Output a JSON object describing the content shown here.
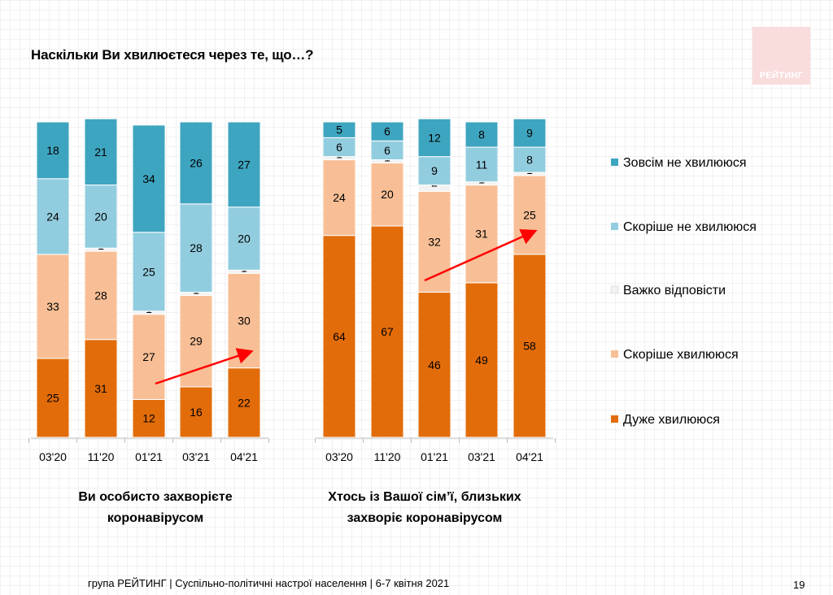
{
  "title": "Наскільки Ви хвилюєтеся через те, що…?",
  "logo": {
    "text": "РЕЙТИНГ",
    "color": "#f9dcdc"
  },
  "footer": "група РЕЙТИНГ | Суспільно-політичні настрої населення | 6-7 квітня 2021",
  "page_number": "19",
  "colors": {
    "Зовсім не хвилююся": "#3ea5c0",
    "Скоріше не хвилююся": "#92cddf",
    "Важко відповісти": "#f2f2f2",
    "Скоріше хвилююся": "#f8bf96",
    "Дуже хвилююся": "#e36c0a",
    "arrow": "#ff0000"
  },
  "chart_data": [
    {
      "type": "bar",
      "stacked": true,
      "title": "Ви особисто захворієте коронавірусом",
      "categories": [
        "03'20",
        "11'20",
        "01'21",
        "03'21",
        "04'21"
      ],
      "series": [
        {
          "name": "Дуже хвилююся",
          "values": [
            25,
            31,
            12,
            16,
            22
          ]
        },
        {
          "name": "Скоріше хвилююся",
          "values": [
            33,
            28,
            27,
            29,
            30
          ]
        },
        {
          "name": "Важко відповісти",
          "values": [
            0,
            1,
            1,
            1,
            1
          ]
        },
        {
          "name": "Скоріше не хвилююся",
          "values": [
            24,
            20,
            25,
            28,
            20
          ]
        },
        {
          "name": "Зовсім не хвилююся",
          "values": [
            18,
            21,
            34,
            26,
            27
          ]
        }
      ],
      "ylim": [
        0,
        100
      ],
      "annotation": {
        "type": "trend-arrow",
        "from_category": "01'21",
        "to_category": "04'21"
      }
    },
    {
      "type": "bar",
      "stacked": true,
      "title": "Хтось із Вашої сім’ї, близьких захворіє коронавірусом",
      "categories": [
        "03'20",
        "11'20",
        "01'21",
        "03'21",
        "04'21"
      ],
      "series": [
        {
          "name": "Дуже хвилююся",
          "values": [
            64,
            67,
            46,
            49,
            58
          ]
        },
        {
          "name": "Скоріше хвилююся",
          "values": [
            24,
            20,
            32,
            31,
            25
          ]
        },
        {
          "name": "Важко відповісти",
          "values": [
            1,
            1,
            2,
            1,
            1
          ]
        },
        {
          "name": "Скоріше не хвилююся",
          "values": [
            6,
            6,
            9,
            11,
            8
          ]
        },
        {
          "name": "Зовсім не хвилююся",
          "values": [
            5,
            6,
            12,
            8,
            9
          ]
        }
      ],
      "ylim": [
        0,
        100
      ],
      "annotation": {
        "type": "trend-arrow",
        "from_category": "01'21",
        "to_category": "04'21"
      }
    }
  ],
  "legend": {
    "placement": "right",
    "items": [
      "Зовсім не хвилююся",
      "Скоріше не хвилююся",
      "Важко відповісти",
      "Скоріше хвилююся",
      "Дуже хвилююся"
    ]
  }
}
